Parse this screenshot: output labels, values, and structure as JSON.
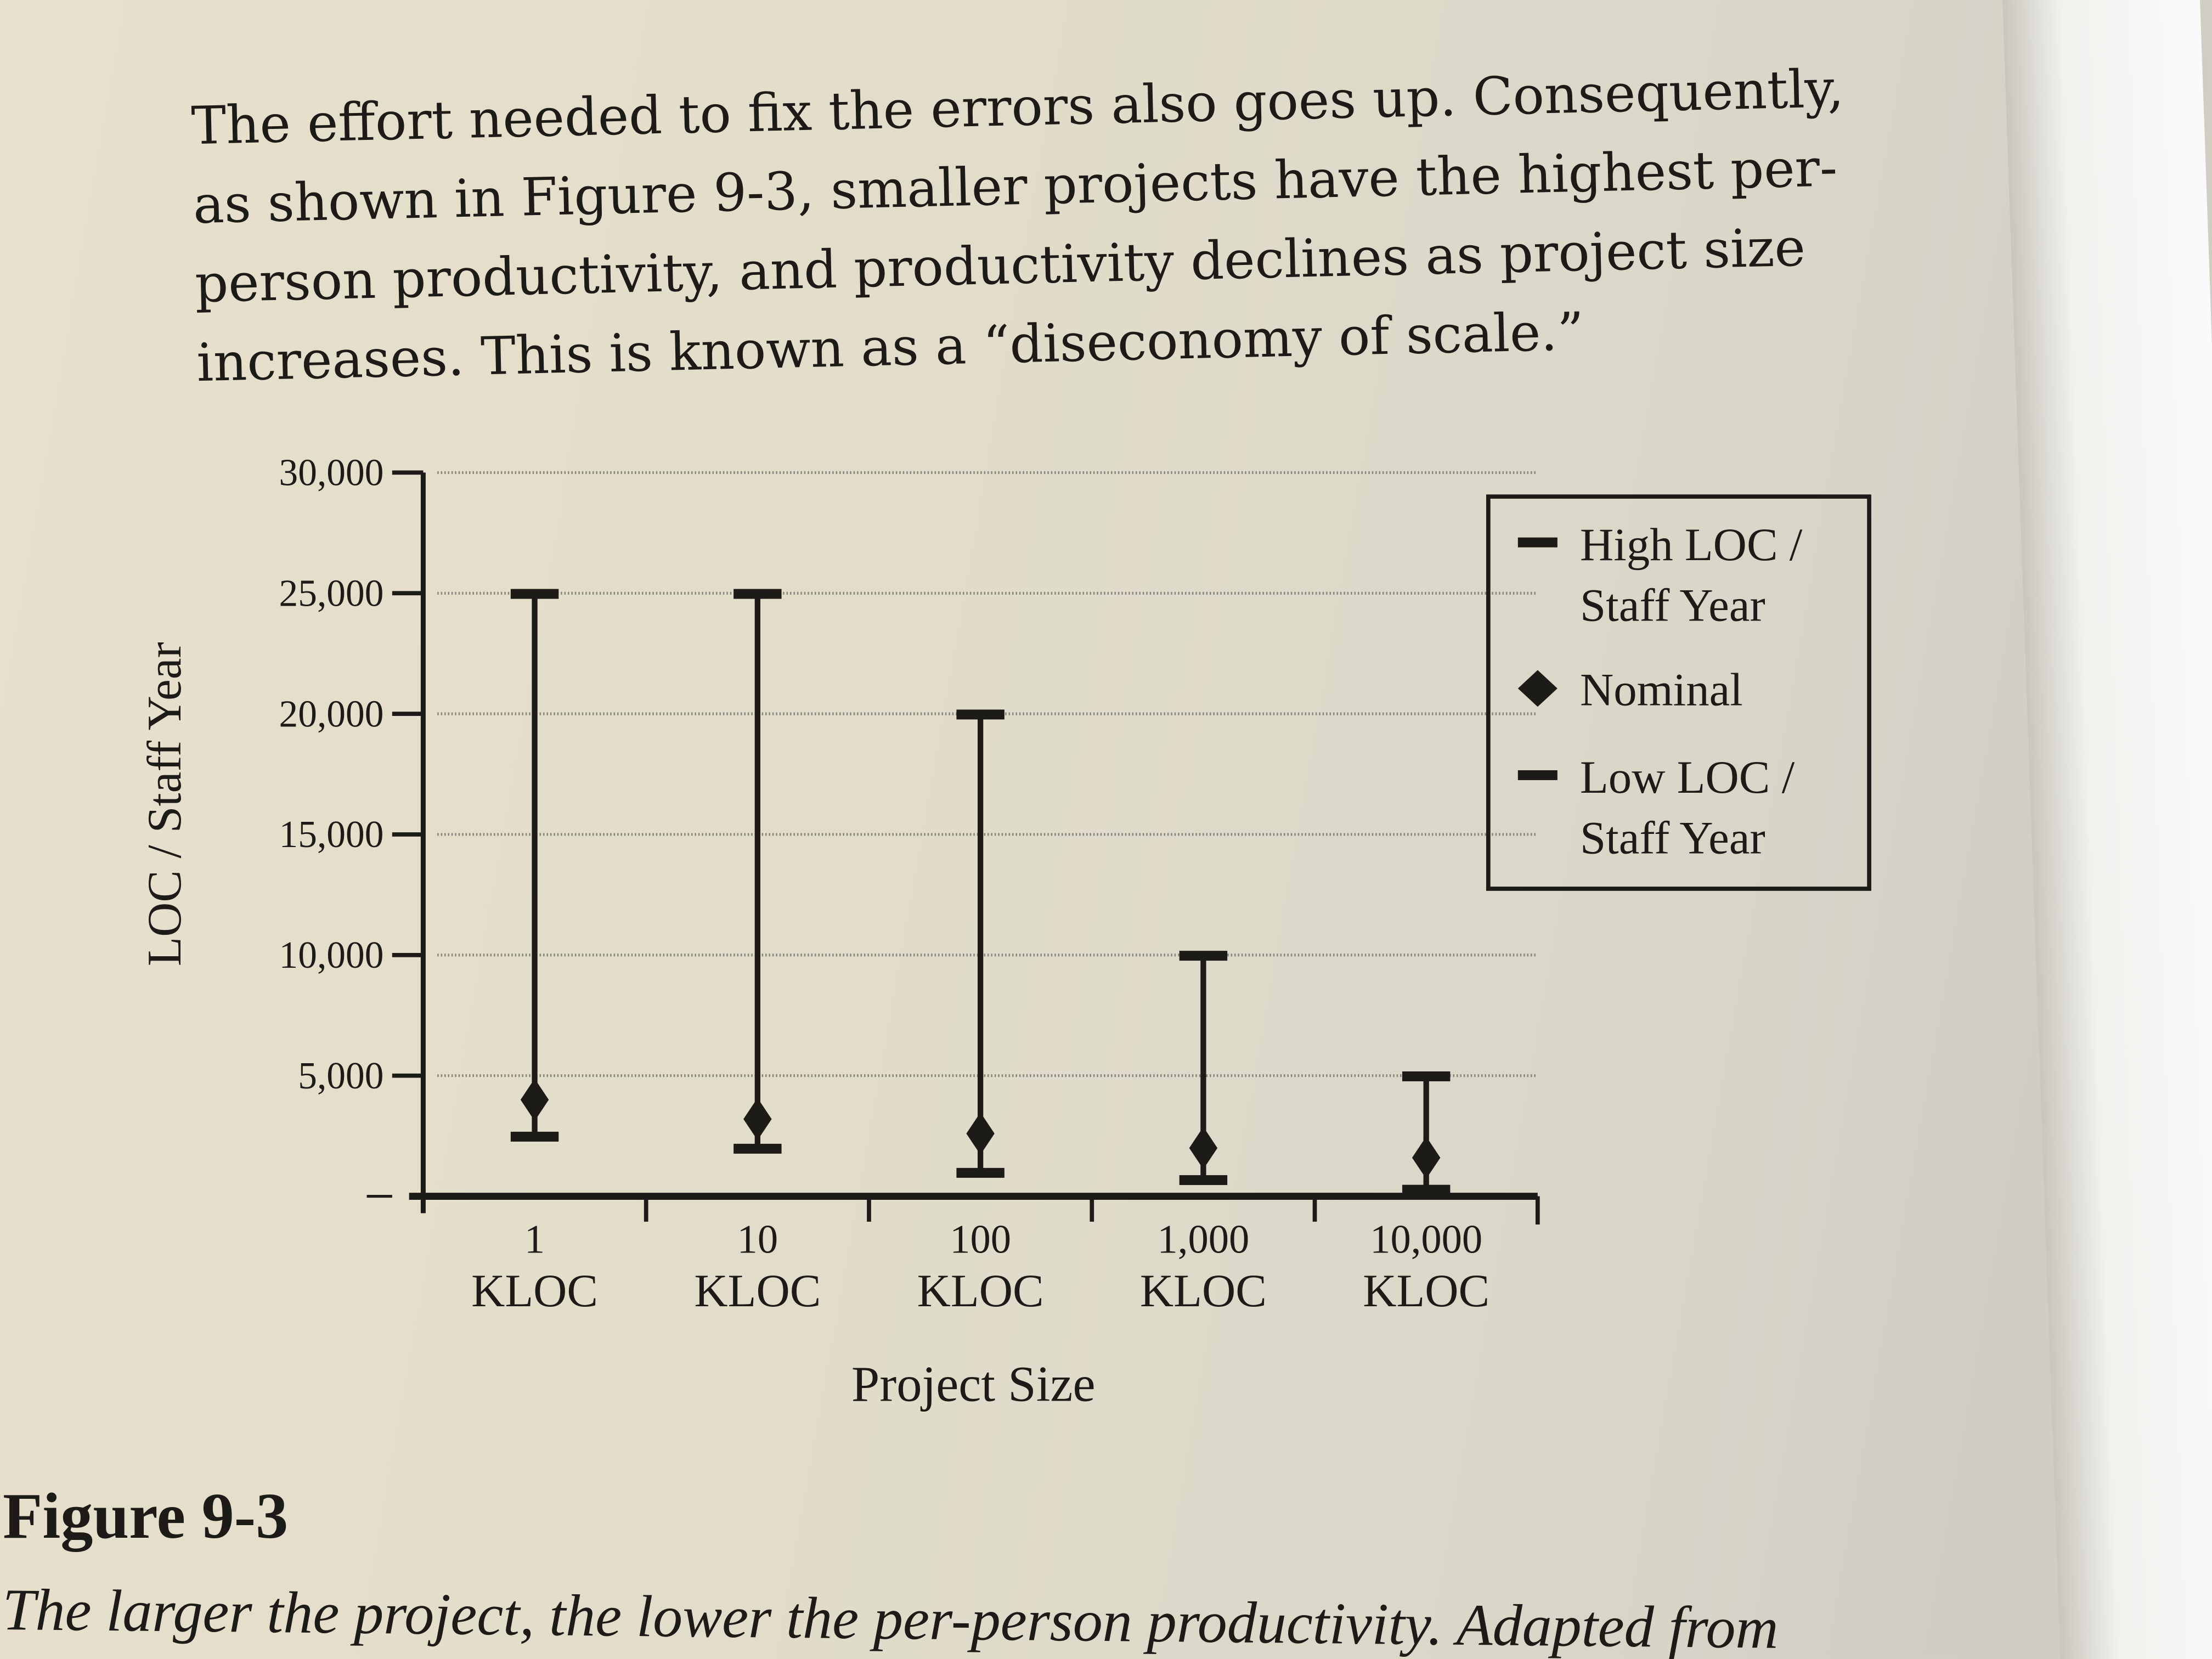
{
  "paragraph": {
    "lines": [
      "The effort needed to fix the errors also goes up. Consequently,",
      "as shown in Figure 9-3, smaller projects have the highest per-",
      "person productivity, and productivity declines as project size",
      "increases. This is known as a “diseconomy of scale.”"
    ]
  },
  "figure": {
    "title": "Figure 9-3",
    "caption": "The larger the project, the lower the per-person productivity. Adapted from"
  },
  "chart_data": {
    "type": "error-bar",
    "xlabel": "Project Size",
    "ylabel": "LOC / Staff Year",
    "categories": [
      [
        "1",
        "KLOC"
      ],
      [
        "10",
        "KLOC"
      ],
      [
        "100",
        "KLOC"
      ],
      [
        "1,000",
        "KLOC"
      ],
      [
        "10,000",
        "KLOC"
      ]
    ],
    "ylim": [
      0,
      30000
    ],
    "yticks": [
      5000,
      10000,
      15000,
      20000,
      25000,
      30000
    ],
    "ytick_labels": [
      "5,000",
      "10,000",
      "15,000",
      "20,000",
      "25,000",
      "30,000"
    ],
    "grid": true,
    "legend_position": "right",
    "series": [
      {
        "name": "High LOC / Staff Year",
        "legend_lines": [
          "High LOC /",
          "Staff Year"
        ],
        "marker": "dash",
        "values": [
          25000,
          25000,
          20000,
          10000,
          5000
        ]
      },
      {
        "name": "Nominal",
        "legend_lines": [
          "Nominal"
        ],
        "marker": "diamond",
        "values": [
          4000,
          3200,
          2600,
          2000,
          1600
        ]
      },
      {
        "name": "Low LOC / Staff Year",
        "legend_lines": [
          "Low LOC /",
          "Staff Year"
        ],
        "marker": "dash",
        "values": [
          2500,
          2000,
          1000,
          700,
          300
        ]
      }
    ],
    "colors": {
      "ink": "#1d1b18",
      "grid": "#8a877f"
    }
  }
}
